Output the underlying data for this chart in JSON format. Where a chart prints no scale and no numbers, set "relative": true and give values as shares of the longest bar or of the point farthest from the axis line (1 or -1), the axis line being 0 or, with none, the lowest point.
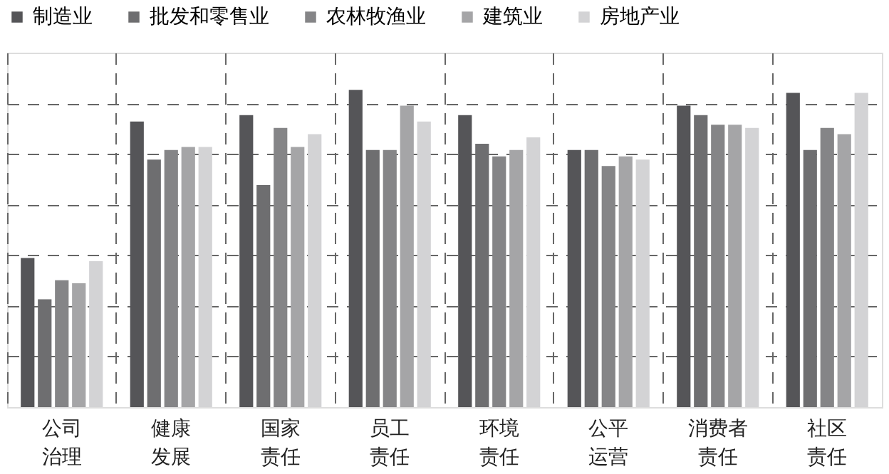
{
  "chart_data": {
    "type": "bar",
    "relative": true,
    "grid": true,
    "legend": "top",
    "categories": [
      "公司治理",
      "健康发展",
      "国家责任",
      "员工责任",
      "环境责任",
      "公平运营",
      "消费者责任",
      "社区责任"
    ],
    "series": [
      {
        "name": "制造业",
        "color": "#555558",
        "values": [
          0.47,
          0.9,
          0.92,
          1.0,
          0.92,
          0.81,
          0.95,
          0.99
        ]
      },
      {
        "name": "批发和零售业",
        "color": "#6e6e70",
        "values": [
          0.34,
          0.78,
          0.7,
          0.81,
          0.83,
          0.81,
          0.92,
          0.81
        ]
      },
      {
        "name": "农林牧渔业",
        "color": "#858587",
        "values": [
          0.4,
          0.81,
          0.88,
          0.81,
          0.79,
          0.76,
          0.89,
          0.88
        ]
      },
      {
        "name": "建筑业",
        "color": "#a5a5a7",
        "values": [
          0.39,
          0.82,
          0.82,
          0.95,
          0.81,
          0.79,
          0.89,
          0.86
        ]
      },
      {
        "name": "房地产业",
        "color": "#d3d3d5",
        "values": [
          0.46,
          0.82,
          0.86,
          0.9,
          0.85,
          0.78,
          0.88,
          0.99
        ]
      }
    ]
  }
}
